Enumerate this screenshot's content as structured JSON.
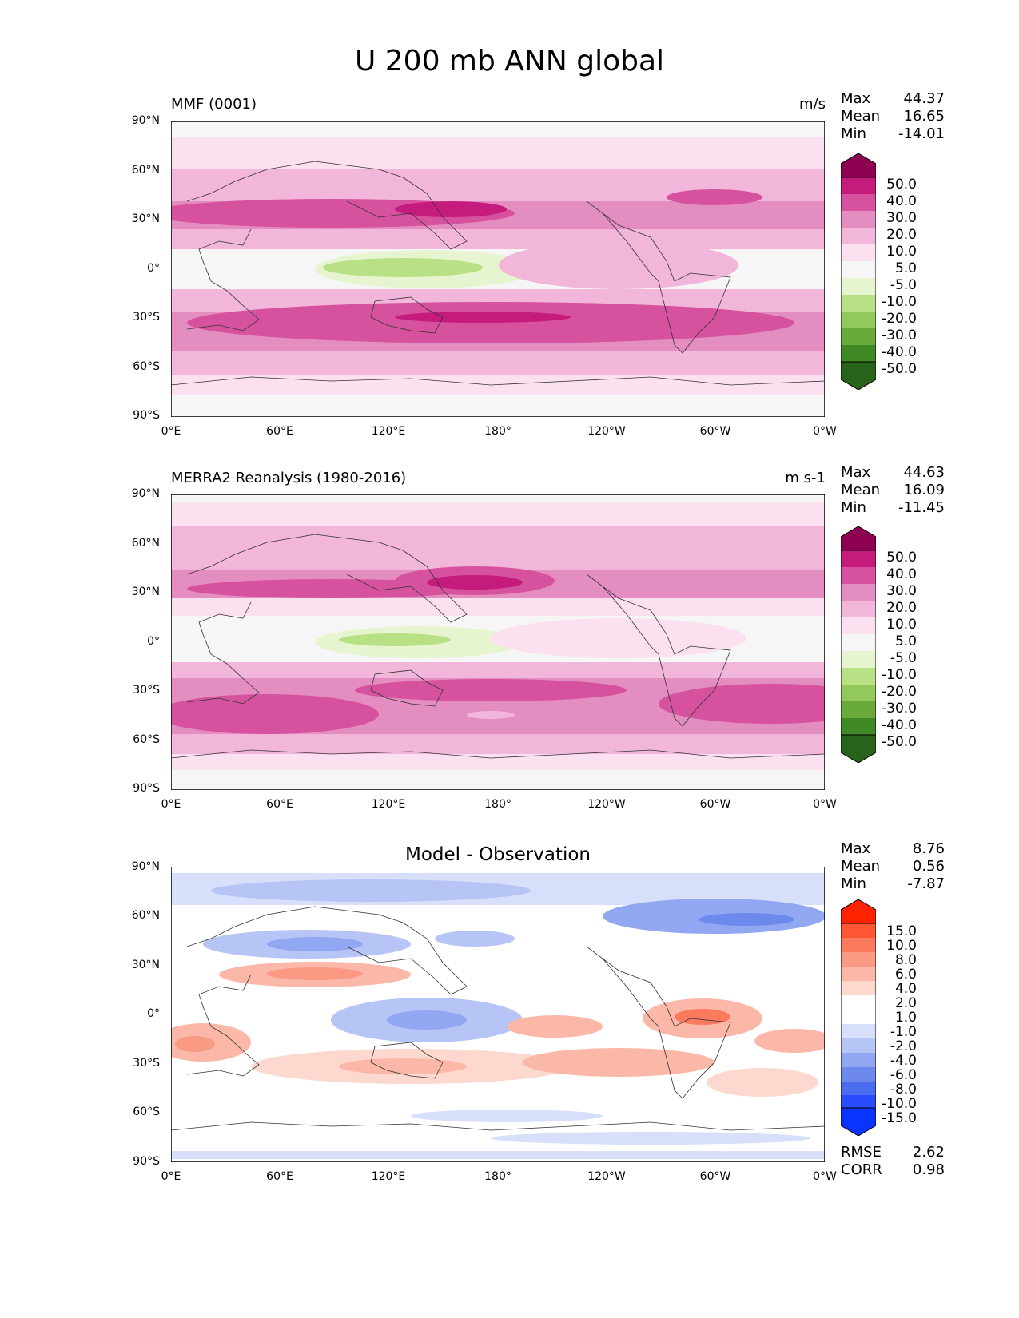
{
  "figure": {
    "title": "U 200 mb ANN global"
  },
  "lat_ticks": [
    "90°N",
    "60°N",
    "30°N",
    "0°",
    "30°S",
    "60°S",
    "90°S"
  ],
  "lon_ticks": [
    "0°E",
    "60°E",
    "120°E",
    "180°",
    "120°W",
    "60°W",
    "0°W"
  ],
  "panel1": {
    "left_label": "MMF (0001)",
    "units": "m/s",
    "stats": [
      {
        "label": "Max",
        "value": "44.37"
      },
      {
        "label": "Mean",
        "value": "16.65"
      },
      {
        "label": "Min",
        "value": "-14.01"
      }
    ],
    "colorbar": [
      "50.0",
      "40.0",
      "30.0",
      "20.0",
      "10.0",
      "5.0",
      "-5.0",
      "-10.0",
      "-20.0",
      "-30.0",
      "-40.0",
      "-50.0"
    ]
  },
  "panel2": {
    "left_label": "MERRA2 Reanalysis (1980-2016)",
    "units": "m s-1",
    "stats": [
      {
        "label": "Max",
        "value": "44.63"
      },
      {
        "label": "Mean",
        "value": "16.09"
      },
      {
        "label": "Min",
        "value": "-11.45"
      }
    ],
    "colorbar": [
      "50.0",
      "40.0",
      "30.0",
      "20.0",
      "10.0",
      "5.0",
      "-5.0",
      "-10.0",
      "-20.0",
      "-30.0",
      "-40.0",
      "-50.0"
    ]
  },
  "panel3": {
    "center_title": "Model - Observation",
    "stats": [
      {
        "label": "Max",
        "value": "8.76"
      },
      {
        "label": "Mean",
        "value": "0.56"
      },
      {
        "label": "Min",
        "value": "-7.87"
      }
    ],
    "colorbar": [
      "15.0",
      "10.0",
      "8.0",
      "6.0",
      "4.0",
      "2.0",
      "1.0",
      "-1.0",
      "-2.0",
      "-4.0",
      "-6.0",
      "-8.0",
      "-10.0",
      "-15.0"
    ],
    "metrics": [
      {
        "label": "RMSE",
        "value": "2.62"
      },
      {
        "label": "CORR",
        "value": "0.98"
      }
    ]
  },
  "colors": {
    "pink_scale": [
      "#8e0152",
      "#c51b7d",
      "#d6529e",
      "#e48dc1",
      "#f1b6da",
      "#fbe0ef",
      "#f6f6f6",
      "#e6f5d0",
      "#b8e186",
      "#93c95a",
      "#6aaa3a",
      "#3f8a26",
      "#276419"
    ],
    "diff_scale": [
      "#ff2200",
      "#ff5533",
      "#fb7a5e",
      "#fb9a82",
      "#fbb8a8",
      "#fdd8cf",
      "#ffffff",
      "#ffffff",
      "#d8dffb",
      "#b6c4f6",
      "#92a7f1",
      "#6e89ec",
      "#4a6df0",
      "#2a4cff",
      "#0a33ff"
    ]
  }
}
